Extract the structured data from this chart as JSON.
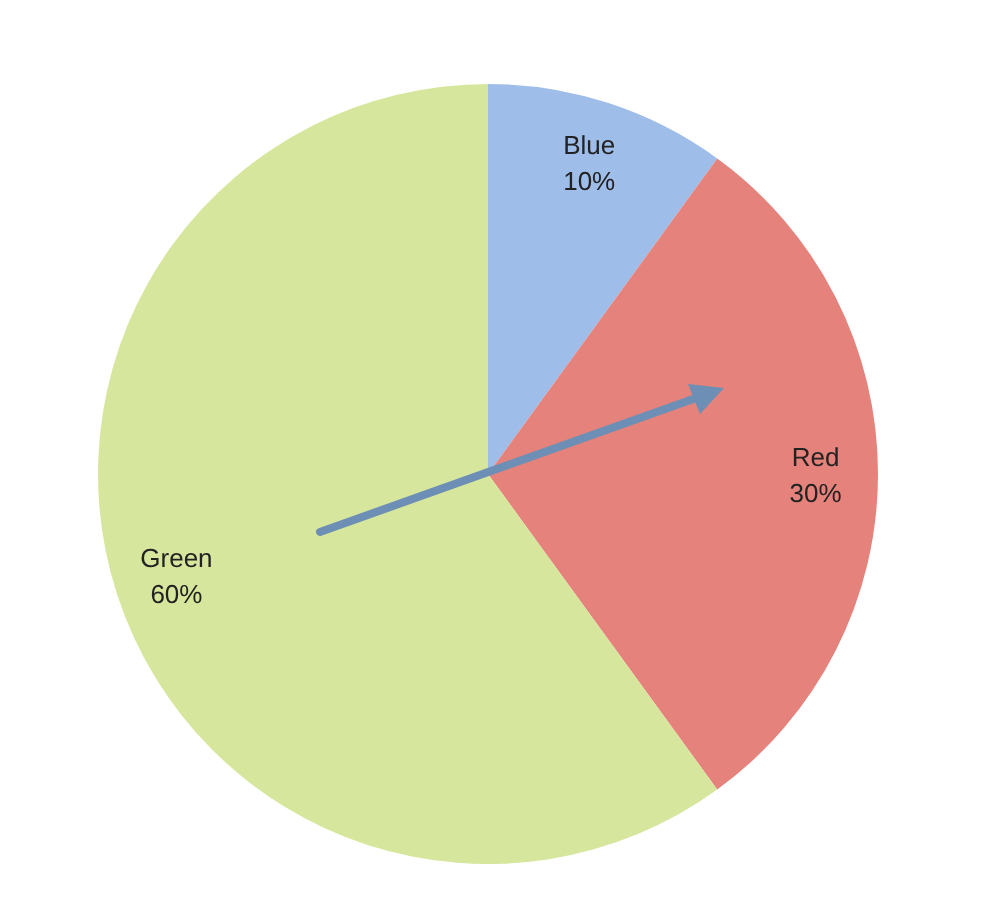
{
  "chart_data": {
    "type": "pie",
    "categories": [
      "Blue",
      "Red",
      "Green"
    ],
    "values": [
      10,
      30,
      60
    ],
    "colors": [
      "#9fbde9",
      "#e5827b",
      "#d7e69d"
    ],
    "value_labels": [
      "10%",
      "30%",
      "60%"
    ]
  }
}
